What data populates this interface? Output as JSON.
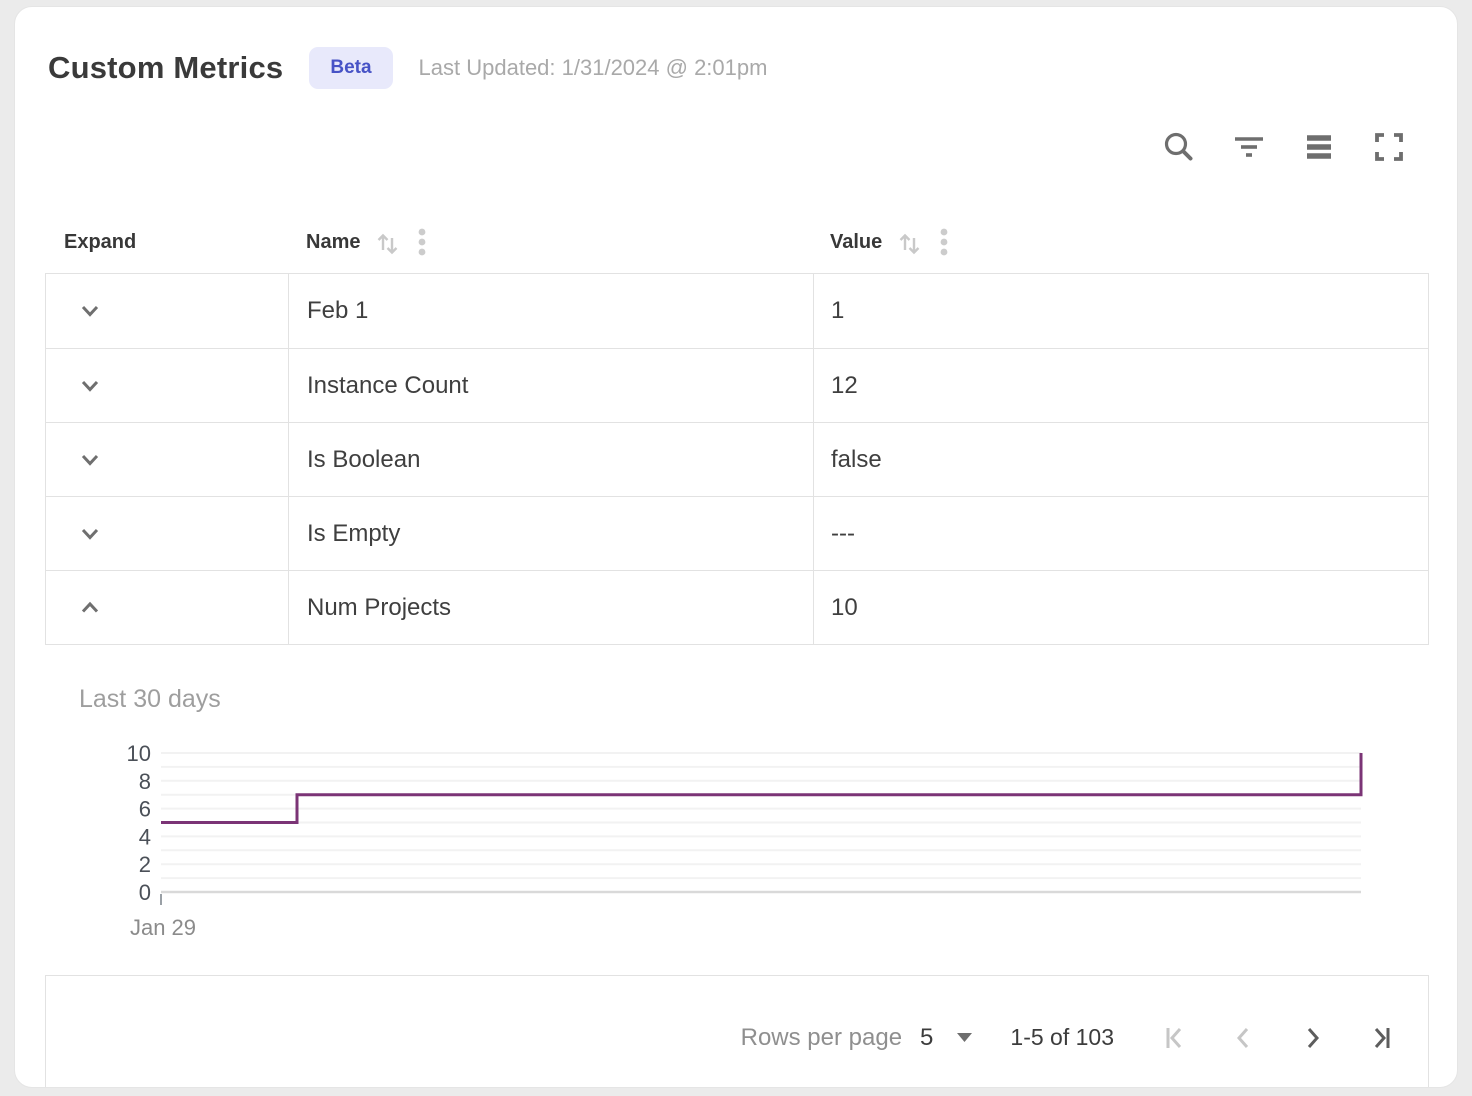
{
  "header": {
    "title": "Custom Metrics",
    "badge": "Beta",
    "last_updated": "Last Updated: 1/31/2024 @ 2:01pm"
  },
  "toolbar": {
    "icons": [
      "search-icon",
      "filter-icon",
      "density-icon",
      "fullscreen-icon"
    ]
  },
  "table": {
    "columns": [
      {
        "label": "Expand",
        "sortable": false
      },
      {
        "label": "Name",
        "sortable": true
      },
      {
        "label": "Value",
        "sortable": true
      }
    ],
    "rows": [
      {
        "name": "Feb 1",
        "value": "1",
        "expanded": false
      },
      {
        "name": "Instance Count",
        "value": "12",
        "expanded": false
      },
      {
        "name": "Is Boolean",
        "value": "false",
        "expanded": false
      },
      {
        "name": "Is Empty",
        "value": "---",
        "expanded": false
      },
      {
        "name": "Num Projects",
        "value": "10",
        "expanded": true
      }
    ]
  },
  "detail_panel": {
    "label": "Last 30 days"
  },
  "chart_data": {
    "type": "line",
    "subtype": "step",
    "title": "Last 30 days",
    "xlabel": "",
    "ylabel": "",
    "xlim": [
      0,
      30
    ],
    "ylim": [
      0,
      10
    ],
    "grid_step": 1,
    "yticks": [
      0,
      2,
      4,
      6,
      8,
      10
    ],
    "xticks": [
      {
        "x": 0,
        "label": "Jan 29"
      }
    ],
    "series": [
      {
        "name": "Num Projects",
        "points": [
          {
            "x": 0,
            "y": 5
          },
          {
            "x": 3.4,
            "y": 5
          },
          {
            "x": 3.4,
            "y": 7
          },
          {
            "x": 30,
            "y": 7
          },
          {
            "x": 30,
            "y": 10
          }
        ]
      }
    ],
    "line_color": "#7b3476",
    "grid_color": "#f2f2f2",
    "axis_color": "#d9d9d9",
    "tick_label_color": "#4b5058",
    "x_label_color": "#8b8b8b",
    "legend": "none",
    "grid": "on"
  },
  "pagination": {
    "rows_per_page_label": "Rows per page",
    "rows_per_page_value": "5",
    "range_label": "1-5 of 103"
  },
  "colors": {
    "badge_bg": "#e8e9fb",
    "badge_text": "#4753c6",
    "accent_line": "#7b3476",
    "icon_gray": "#6e6e6e",
    "muted_gray": "#c9c9c9",
    "disabled_icon": "#c6c6c6",
    "enabled_icon": "#5d5d5d"
  }
}
